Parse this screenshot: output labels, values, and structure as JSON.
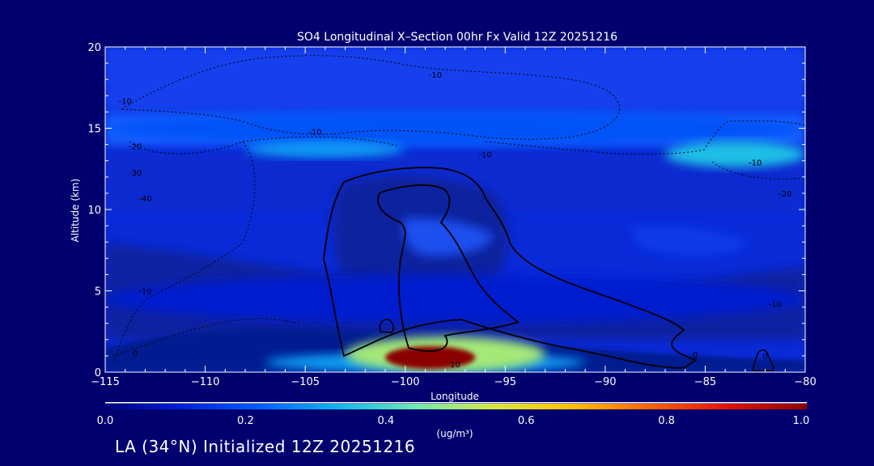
{
  "footer": {
    "caption": "LA (34°N) Initialized 12Z 20251216"
  },
  "colors": {
    "background": "#00006e",
    "colorbar_stops": [
      "#00007a",
      "#0020d8",
      "#0060ff",
      "#10b8f0",
      "#70e8b0",
      "#d8e840",
      "#ffc000",
      "#ff6000",
      "#e01000",
      "#8a0000"
    ]
  },
  "chart_data": {
    "type": "heatmap",
    "title": "SO4 Longitudinal X–Section 00hr  Fx Valid 12Z 20251216",
    "xlabel": "Longitude",
    "ylabel": "Altitude (km)",
    "xlim": [
      -115,
      -80
    ],
    "ylim": [
      0,
      20
    ],
    "xticks": [
      -115,
      -110,
      -105,
      -100,
      -95,
      -90,
      -85,
      -80
    ],
    "yticks": [
      0,
      5,
      10,
      15,
      20
    ],
    "colorbar": {
      "label": "(ug/m³)",
      "range": [
        0.0,
        1.0
      ],
      "ticks": [
        "0.0",
        "0.2",
        "0.4",
        "0.6",
        "0.8",
        "1.0"
      ]
    },
    "concentration_features": [
      {
        "x": [
          -101.0,
          -96.5
        ],
        "y": [
          0.2,
          1.6
        ],
        "value": 1.0
      },
      {
        "x": [
          -103.0,
          -93.0
        ],
        "y": [
          0.0,
          2.2
        ],
        "value": 0.5
      },
      {
        "x": [
          -107.0,
          -91.0
        ],
        "y": [
          0.0,
          1.2
        ],
        "value": 0.3
      },
      {
        "x": [
          -108.0,
          -100.0
        ],
        "y": [
          13.2,
          14.2
        ],
        "value": 0.3
      },
      {
        "x": [
          -87.0,
          -80.0
        ],
        "y": [
          12.6,
          14.2
        ],
        "value": 0.35
      },
      {
        "x": [
          -115.0,
          -80.0
        ],
        "y": [
          14.0,
          16.0
        ],
        "value": 0.2
      },
      {
        "x": [
          -115.0,
          -80.0
        ],
        "y": [
          3.0,
          6.0
        ],
        "value": 0.1
      }
    ],
    "contour_labels": [
      {
        "text": "-10",
        "x": -114.0,
        "y": 16.5
      },
      {
        "text": "-10",
        "x": -104.5,
        "y": 14.6
      },
      {
        "text": "-10",
        "x": -98.5,
        "y": 18.1
      },
      {
        "text": "-10",
        "x": -96.0,
        "y": 13.2
      },
      {
        "text": "-10",
        "x": -82.5,
        "y": 12.7
      },
      {
        "text": "-20",
        "x": -113.5,
        "y": 13.7
      },
      {
        "text": "-30",
        "x": -113.5,
        "y": 12.1
      },
      {
        "text": "-40",
        "x": -113.0,
        "y": 10.5
      },
      {
        "text": "-20",
        "x": -81.0,
        "y": 10.8
      },
      {
        "text": "-10",
        "x": -113.0,
        "y": 4.8
      },
      {
        "text": "-10",
        "x": -81.5,
        "y": 4.0
      },
      {
        "text": "0",
        "x": -113.5,
        "y": 1.0
      },
      {
        "text": "0",
        "x": -85.5,
        "y": 0.9
      },
      {
        "text": "0",
        "x": -82.0,
        "y": 0.8
      },
      {
        "text": "10",
        "x": -97.5,
        "y": 0.3
      }
    ]
  }
}
